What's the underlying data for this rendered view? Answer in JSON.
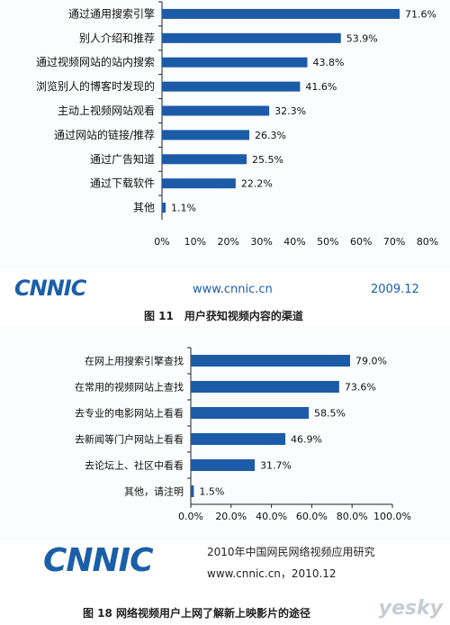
{
  "colors": {
    "bar": "#1c5ba8",
    "axis": "#222222",
    "brand": "#1b5fa8"
  },
  "figure1": {
    "brand_logo": "CNNIC",
    "url": "www.cnnic.cn",
    "date": "2009.12",
    "caption": "图 11　用户获知视频内容的渠道"
  },
  "figure2": {
    "brand_logo": "CNNIC",
    "report_title": "2010年中国网民网络视频应用研究",
    "url_date": "www.cnnic.cn，2010.12",
    "caption": "图 18 网络视频用户上网了解新上映影片的途径"
  },
  "watermark": "yesky",
  "chart_data": [
    {
      "type": "bar",
      "orientation": "horizontal",
      "categories": [
        "通过通用搜索引擎",
        "别人介绍和推荐",
        "通过视频网站的站内搜索",
        "浏览别人的博客时发现的",
        "主动上视频网站观看",
        "通过网站的链接/推荐",
        "通过广告知道",
        "通过下载软件",
        "其他"
      ],
      "values": [
        71.6,
        53.9,
        43.8,
        41.6,
        32.3,
        26.3,
        25.5,
        22.2,
        1.1
      ],
      "value_labels": [
        "71.6%",
        "53.9%",
        "43.8%",
        "41.6%",
        "32.3%",
        "26.3%",
        "25.5%",
        "22.2%",
        "1.1%"
      ],
      "xlim": [
        0,
        80
      ],
      "ticks": [
        "0%",
        "10%",
        "20%",
        "30%",
        "40%",
        "50%",
        "60%",
        "70%",
        "80%"
      ]
    },
    {
      "type": "bar",
      "orientation": "horizontal",
      "categories": [
        "在网上用搜索引擎查找",
        "在常用的视频网站上查找",
        "去专业的电影网站上看看",
        "去新闻等门户网站上看看",
        "去论坛上、社区中看看",
        "其他，请注明"
      ],
      "values": [
        79.0,
        73.6,
        58.5,
        46.9,
        31.7,
        1.5
      ],
      "value_labels": [
        "79.0%",
        "73.6%",
        "58.5%",
        "46.9%",
        "31.7%",
        "1.5%"
      ],
      "xlim": [
        0,
        100
      ],
      "ticks": [
        "0.0%",
        "20.0%",
        "40.0%",
        "60.0%",
        "80.0%",
        "100.0%"
      ]
    }
  ]
}
